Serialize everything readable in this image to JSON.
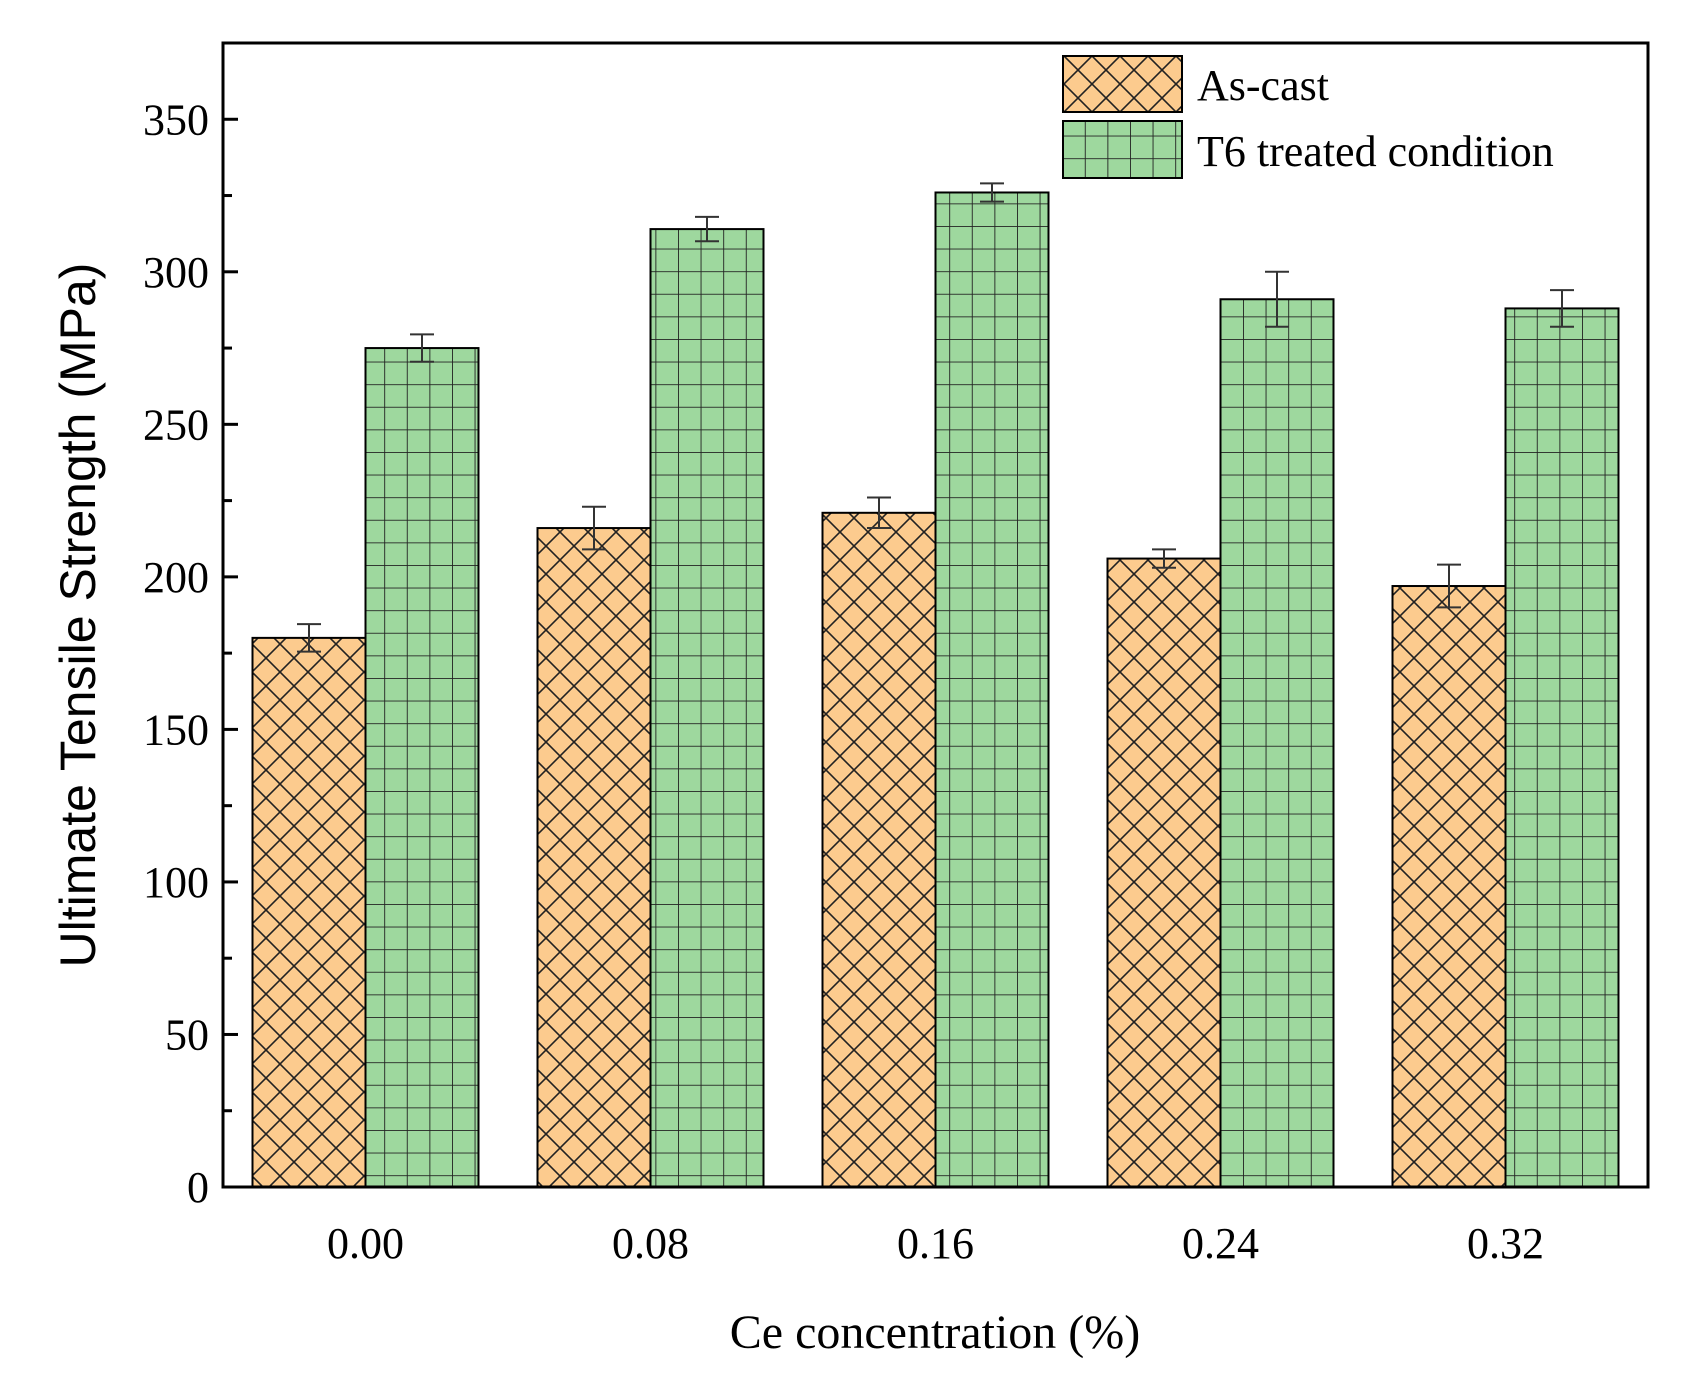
{
  "chart_data": {
    "type": "bar",
    "title": "",
    "xlabel": "Ce concentration (%)",
    "ylabel": "Ultimate Tensile Strength (MPa)",
    "categories": [
      "0.00",
      "0.08",
      "0.16",
      "0.24",
      "0.32"
    ],
    "ylim": [
      0,
      375
    ],
    "yticks": [
      0,
      50,
      100,
      150,
      200,
      250,
      300,
      350
    ],
    "yminor_step": 25,
    "grid": false,
    "legend_position": "top-right",
    "series": [
      {
        "name": "As-cast",
        "color": "#FCCB8E",
        "pattern": "crosshatch",
        "values": [
          180,
          216,
          221,
          206,
          197
        ],
        "errors": [
          4.5,
          7,
          5,
          3,
          7
        ]
      },
      {
        "name": "T6 treated condition",
        "color": "#9ED89E",
        "pattern": "grid",
        "values": [
          275,
          314,
          326,
          291,
          288
        ],
        "errors": [
          4.5,
          4,
          3,
          9,
          6
        ]
      }
    ]
  }
}
